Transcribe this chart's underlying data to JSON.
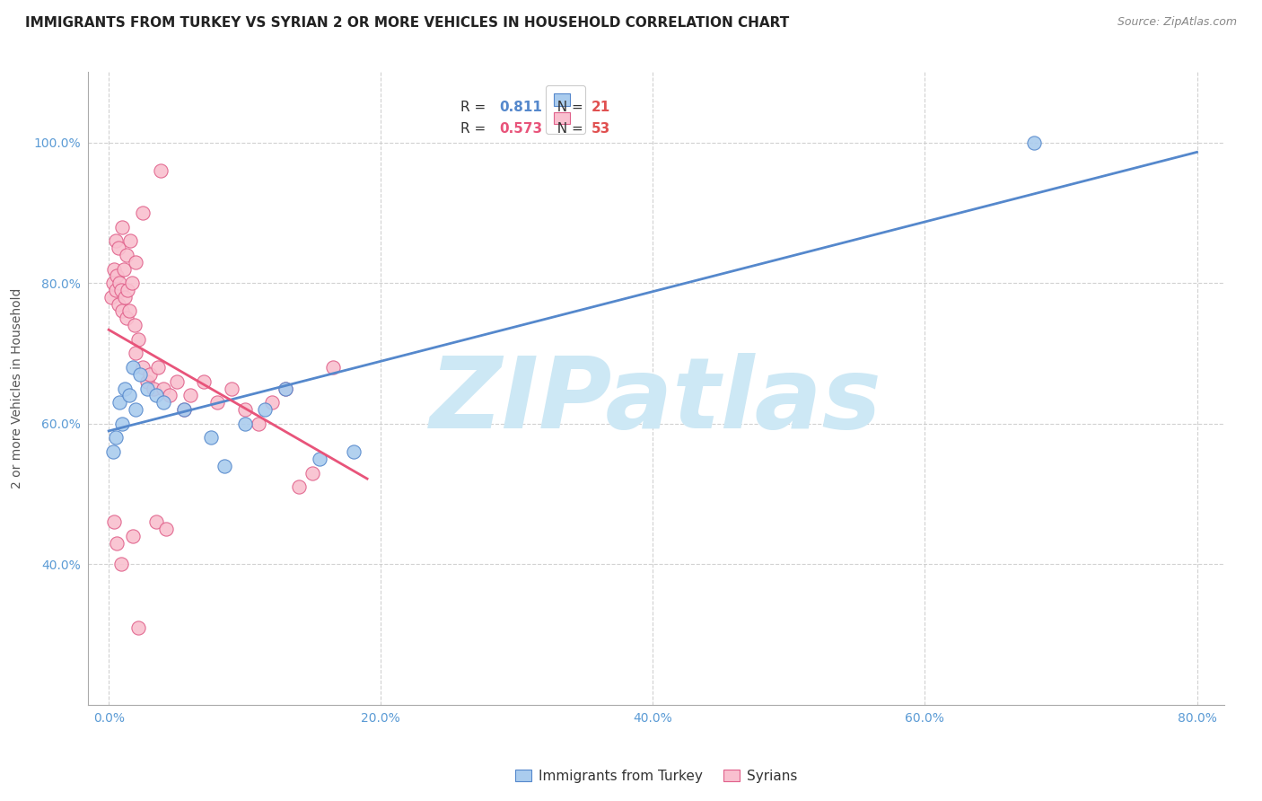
{
  "title": "IMMIGRANTS FROM TURKEY VS SYRIAN 2 OR MORE VEHICLES IN HOUSEHOLD CORRELATION CHART",
  "source": "Source: ZipAtlas.com",
  "ylabel": "2 or more Vehicles in Household",
  "x_tick_labels": [
    "0.0%",
    "20.0%",
    "40.0%",
    "60.0%",
    "80.0%"
  ],
  "x_tick_values": [
    0.0,
    20.0,
    40.0,
    60.0,
    80.0
  ],
  "y_tick_labels": [
    "40.0%",
    "60.0%",
    "80.0%",
    "100.0%"
  ],
  "y_tick_values": [
    40.0,
    60.0,
    80.0,
    100.0
  ],
  "xlim": [
    -1.5,
    82.0
  ],
  "ylim": [
    20.0,
    110.0
  ],
  "legend_blue_r": "0.811",
  "legend_blue_n": "21",
  "legend_pink_r": "0.573",
  "legend_pink_n": "53",
  "legend_label_blue": "Immigrants from Turkey",
  "legend_label_pink": "Syrians",
  "blue_color": "#aaccee",
  "pink_color": "#f9c0cf",
  "blue_edge_color": "#5588cc",
  "pink_edge_color": "#e0608a",
  "blue_line_color": "#5588cc",
  "pink_line_color": "#e8547a",
  "watermark": "ZIPatlas",
  "watermark_color": "#cde8f5",
  "title_fontsize": 11,
  "source_fontsize": 9,
  "blue_scatter_x": [
    0.3,
    0.5,
    0.8,
    1.0,
    1.2,
    1.5,
    1.8,
    2.0,
    2.3,
    2.8,
    3.5,
    4.0,
    5.5,
    7.5,
    8.5,
    10.0,
    11.5,
    13.0,
    15.5,
    18.0,
    68.0
  ],
  "blue_scatter_y": [
    56.0,
    58.0,
    63.0,
    60.0,
    65.0,
    64.0,
    68.0,
    62.0,
    67.0,
    65.0,
    64.0,
    63.0,
    62.0,
    58.0,
    54.0,
    60.0,
    62.0,
    65.0,
    55.0,
    56.0,
    100.0
  ],
  "pink_scatter_x": [
    0.2,
    0.3,
    0.4,
    0.5,
    0.6,
    0.7,
    0.8,
    0.9,
    1.0,
    1.1,
    1.2,
    1.3,
    1.4,
    1.5,
    1.7,
    1.9,
    2.0,
    2.2,
    2.5,
    2.8,
    3.0,
    3.3,
    3.6,
    4.0,
    4.5,
    5.0,
    5.5,
    6.0,
    7.0,
    8.0,
    9.0,
    10.0,
    11.0,
    12.0,
    13.0,
    14.0,
    15.0,
    16.5,
    0.5,
    0.7,
    1.0,
    1.3,
    1.6,
    2.0,
    2.5,
    0.4,
    1.8,
    3.5,
    4.2,
    0.6,
    0.9,
    2.2,
    3.8
  ],
  "pink_scatter_y": [
    78.0,
    80.0,
    82.0,
    79.0,
    81.0,
    77.0,
    80.0,
    79.0,
    76.0,
    82.0,
    78.0,
    75.0,
    79.0,
    76.0,
    80.0,
    74.0,
    70.0,
    72.0,
    68.0,
    66.0,
    67.0,
    65.0,
    68.0,
    65.0,
    64.0,
    66.0,
    62.0,
    64.0,
    66.0,
    63.0,
    65.0,
    62.0,
    60.0,
    63.0,
    65.0,
    51.0,
    53.0,
    68.0,
    86.0,
    85.0,
    88.0,
    84.0,
    86.0,
    83.0,
    90.0,
    46.0,
    44.0,
    46.0,
    45.0,
    43.0,
    40.0,
    31.0,
    96.0
  ]
}
